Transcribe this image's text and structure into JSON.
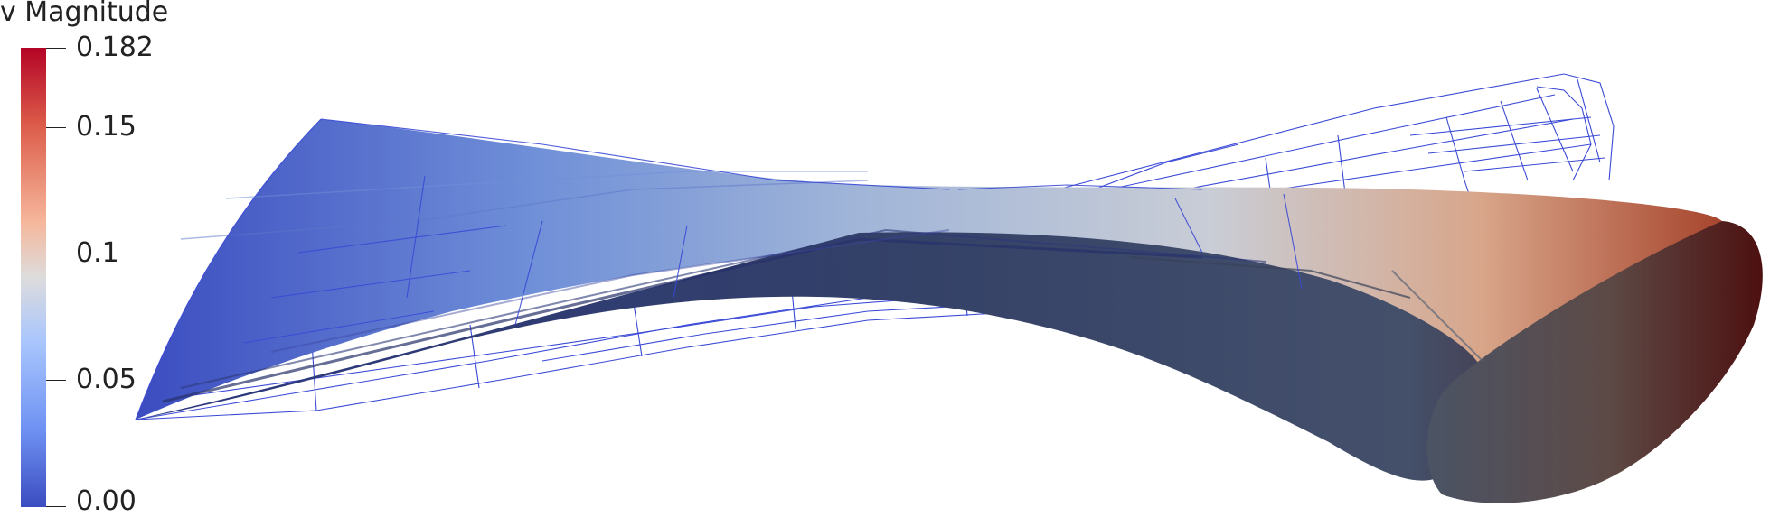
{
  "legend": {
    "title": "v Magnitude",
    "ticks": [
      "0.182",
      "0.15",
      "0.1",
      "0.05",
      "0.00"
    ],
    "colormap": [
      "#3b4cc0",
      "#dddcdc",
      "#b40426"
    ]
  },
  "render": {
    "wireframe_color": "#3a49d6",
    "background": "#ffffff"
  }
}
